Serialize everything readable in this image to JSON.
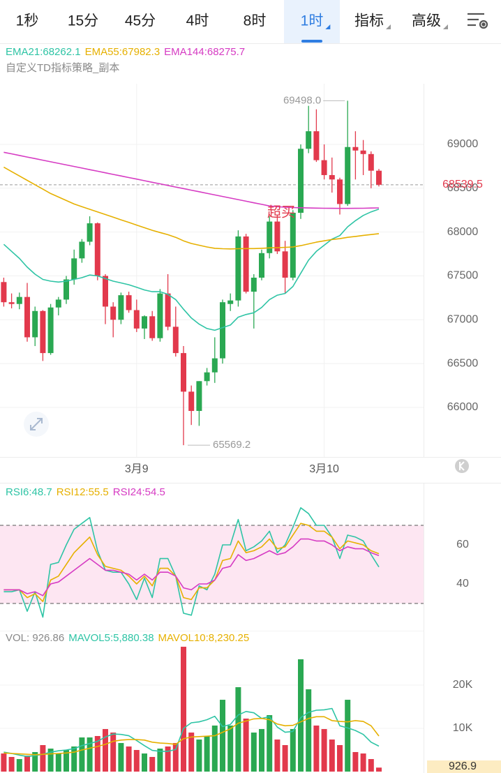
{
  "tabs": [
    "1秒",
    "15分",
    "45分",
    "4时",
    "8时",
    "1时",
    "指标",
    "高级"
  ],
  "selected_tab": 5,
  "chart_data": [
    {
      "type": "candlestick",
      "subtitle": "自定义TD指标策略_副本",
      "categories": [
        null,
        null,
        null,
        null,
        null,
        null,
        null,
        null,
        null,
        null,
        null,
        null,
        null,
        null,
        null,
        null,
        null,
        "3月9",
        null,
        null,
        null,
        null,
        null,
        null,
        null,
        null,
        null,
        null,
        null,
        null,
        null,
        null,
        null,
        null,
        null,
        null,
        null,
        null,
        null,
        null,
        null,
        "3月10",
        null,
        null,
        null,
        null,
        null,
        null,
        null
      ],
      "open": [
        67430,
        67200,
        67180,
        67260,
        66800,
        67100,
        66620,
        67140,
        67230,
        67460,
        67700,
        67890,
        68100,
        67500,
        67150,
        67000,
        67280,
        67110,
        66900,
        67040,
        66790,
        67300,
        66920,
        66620,
        66180,
        65960,
        66300,
        66400,
        66560,
        67180,
        67220,
        67950,
        67320,
        67480,
        67760,
        68120,
        67780,
        67480,
        68220,
        68950,
        69150,
        68820,
        68650,
        68600,
        68320,
        68970,
        68930,
        68890,
        68700
      ],
      "high": [
        67480,
        67300,
        67310,
        67420,
        67150,
        67110,
        67180,
        67260,
        67500,
        67800,
        67920,
        68180,
        68110,
        67520,
        67200,
        67310,
        67320,
        67230,
        67050,
        67100,
        67350,
        67520,
        67150,
        66700,
        66250,
        66300,
        66450,
        66800,
        67230,
        67300,
        68020,
        67980,
        67520,
        67800,
        68180,
        68200,
        67900,
        68250,
        69000,
        69440,
        69400,
        69000,
        68850,
        68620,
        69498,
        69150,
        69050,
        68920,
        68720
      ],
      "low": [
        67150,
        67130,
        67120,
        66750,
        66700,
        66530,
        66600,
        67050,
        67180,
        67400,
        67650,
        67850,
        67450,
        66950,
        66800,
        66950,
        67080,
        66860,
        66780,
        66760,
        66750,
        66880,
        66580,
        65569.2,
        65800,
        65790,
        66250,
        66280,
        66500,
        67100,
        67150,
        67300,
        66900,
        67450,
        67700,
        67750,
        67300,
        67450,
        68150,
        68900,
        68800,
        68600,
        68450,
        68200,
        68300,
        68600,
        68650,
        68500,
        68520
      ],
      "close": [
        67200,
        67180,
        67260,
        66800,
        67100,
        66620,
        67140,
        67230,
        67460,
        67700,
        67890,
        68100,
        67500,
        67150,
        67000,
        67280,
        67110,
        66900,
        67040,
        66790,
        67300,
        66920,
        66620,
        66180,
        65960,
        66300,
        66400,
        66560,
        67200,
        67220,
        67950,
        67320,
        67480,
        67760,
        68120,
        67780,
        67480,
        68220,
        68950,
        69150,
        68820,
        68650,
        68600,
        68320,
        68970,
        68930,
        68890,
        68700,
        68539.5
      ],
      "up_color": "#2aa852",
      "down_color": "#e2394c",
      "series": [
        {
          "name": "EMA21:68262.1",
          "color": "#2ec4a5",
          "values": [
            67860,
            67780,
            67700,
            67600,
            67520,
            67460,
            67440,
            67430,
            67440,
            67460,
            67480,
            67510,
            67500,
            67470,
            67440,
            67420,
            67400,
            67370,
            67340,
            67320,
            67320,
            67290,
            67230,
            67120,
            67020,
            66950,
            66900,
            66880,
            66910,
            66940,
            67030,
            67060,
            67080,
            67140,
            67230,
            67280,
            67300,
            67380,
            67530,
            67680,
            67780,
            67850,
            67920,
            67960,
            68060,
            68130,
            68190,
            68230,
            68262.1
          ]
        },
        {
          "name": "EMA55:67982.3",
          "color": "#e6b000",
          "values": [
            68740,
            68690,
            68640,
            68590,
            68540,
            68490,
            68440,
            68400,
            68360,
            68320,
            68290,
            68260,
            68230,
            68200,
            68170,
            68140,
            68110,
            68080,
            68050,
            68020,
            67995,
            67970,
            67940,
            67900,
            67870,
            67850,
            67830,
            67815,
            67810,
            67808,
            67810,
            67812,
            67812,
            67815,
            67820,
            67822,
            67825,
            67830,
            67845,
            67865,
            67885,
            67900,
            67915,
            67925,
            67940,
            67950,
            67962,
            67972,
            67982.3
          ]
        },
        {
          "name": "EMA144:68275.7",
          "color": "#d63bc3",
          "values": [
            68910,
            68892,
            68874,
            68856,
            68838,
            68820,
            68802,
            68784,
            68766,
            68748,
            68730,
            68712,
            68694,
            68676,
            68658,
            68640,
            68622,
            68604,
            68586,
            68568,
            68550,
            68532,
            68514,
            68496,
            68478,
            68460,
            68442,
            68424,
            68406,
            68388,
            68370,
            68352,
            68334,
            68316,
            68298,
            68290,
            68284,
            68280,
            68277,
            68275,
            68273,
            68272,
            68271,
            68270,
            68270,
            68271,
            68272,
            68274,
            68275.7
          ]
        }
      ],
      "ylim": [
        65459,
        69692
      ],
      "yticks": [
        66000,
        66500,
        67000,
        67500,
        68000,
        68500,
        69000
      ],
      "grid": true,
      "max_label": "69498.0",
      "annotation": "超买"
    },
    {
      "type": "line",
      "series": [
        {
          "name": "RSI6:48.7",
          "color": "#2ec4a5",
          "values": [
            36,
            36,
            37,
            26,
            36,
            23,
            50,
            51,
            60,
            68,
            71,
            74,
            57,
            47,
            46,
            46,
            40,
            32,
            43,
            33,
            53,
            53,
            44,
            25,
            24,
            39,
            37,
            45,
            60,
            60,
            73,
            57,
            59,
            62,
            67,
            56,
            60,
            69,
            79,
            76,
            70,
            70,
            64,
            53,
            65,
            64,
            62,
            55,
            48.7
          ]
        },
        {
          "name": "RSI12:55.5",
          "color": "#e6b000",
          "values": [
            37,
            37,
            37,
            33,
            35,
            31,
            42,
            44,
            50,
            56,
            60,
            64,
            55,
            49,
            48,
            47,
            44,
            40,
            44,
            39,
            48,
            48,
            44,
            33,
            32,
            38,
            38,
            42,
            52,
            53,
            62,
            56,
            57,
            59,
            63,
            58,
            59,
            65,
            71,
            70,
            67,
            67,
            64,
            58,
            62,
            61,
            60,
            57,
            55.5
          ]
        },
        {
          "name": "RSI24:54.5",
          "color": "#d63bc3",
          "values": [
            37,
            37,
            37,
            35,
            36,
            34,
            40,
            41,
            44,
            47,
            50,
            53,
            50,
            47,
            47,
            46,
            45,
            42,
            45,
            42,
            46,
            46,
            44,
            38,
            37,
            40,
            40,
            42,
            48,
            49,
            55,
            52,
            53,
            55,
            57,
            55,
            56,
            59,
            63,
            63,
            62,
            62,
            60,
            57,
            59,
            58,
            58,
            56,
            54.5
          ]
        }
      ],
      "ylim": [
        17.5,
        81.8
      ],
      "yticks": [
        40,
        60
      ],
      "band": [
        30,
        70
      ],
      "band_color": "#fde6f2"
    },
    {
      "type": "bar",
      "name": "VOL: 926.86",
      "values": [
        4190,
        3390,
        2900,
        3710,
        4520,
        6130,
        5320,
        4190,
        5000,
        5810,
        7900,
        7900,
        8230,
        9840,
        9030,
        6610,
        5810,
        5000,
        4190,
        3390,
        5320,
        5810,
        6610,
        28870,
        9030,
        7420,
        8230,
        10650,
        16610,
        10650,
        19520,
        12260,
        9030,
        9840,
        13060,
        7420,
        6130,
        9840,
        25970,
        19030,
        10650,
        9840,
        7420,
        6130,
        16610,
        4520,
        4190,
        2900,
        926.86
      ],
      "last_value_label": "926.9",
      "series": [
        {
          "name": "MAVOL5:5,880.38",
          "color": "#2ec4a5",
          "values": [
            4500,
            4200,
            3800,
            3500,
            3700,
            4000,
            4500,
            4800,
            5000,
            5300,
            6000,
            6500,
            7000,
            8000,
            8700,
            8600,
            8300,
            7200,
            6000,
            4900,
            4700,
            4700,
            5100,
            10000,
            11300,
            11500,
            12000,
            12800,
            10400,
            10900,
            13100,
            13900,
            13600,
            12300,
            12700,
            10300,
            9100,
            9300,
            12500,
            13700,
            14200,
            14300,
            14600,
            10600,
            10100,
            9500,
            8600,
            6800,
            5880.38
          ]
        },
        {
          "name": "MAVOL10:8,230.25",
          "color": "#e6b000",
          "values": [
            4300,
            4200,
            4100,
            4000,
            3900,
            4000,
            4100,
            4200,
            4300,
            4500,
            5000,
            5400,
            5800,
            6300,
            7000,
            7300,
            7400,
            7400,
            7300,
            6800,
            6600,
            6500,
            6300,
            7600,
            8000,
            8100,
            8200,
            8300,
            9100,
            9900,
            11200,
            11700,
            12200,
            12300,
            12000,
            11000,
            10600,
            10700,
            11500,
            12300,
            12700,
            12700,
            11800,
            11600,
            11500,
            11800,
            11600,
            10600,
            8230.25
          ]
        }
      ],
      "ylim": [
        0,
        29200
      ],
      "yticks": [
        {
          "value": 10000,
          "label": "10K"
        },
        {
          "value": 20000,
          "label": "20K"
        }
      ]
    }
  ]
}
